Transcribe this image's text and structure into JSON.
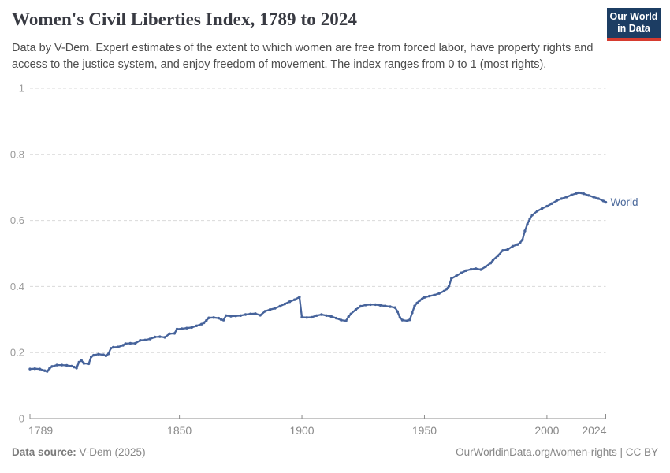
{
  "header": {
    "title": "Women's Civil Liberties Index, 1789 to 2024",
    "subtitle": "Data by V-Dem. Expert estimates of the extent to which women are free from forced labor, have property rights and access to the justice system, and enjoy freedom of movement. The index ranges from 0 to 1 (most rights).",
    "logo": {
      "line1": "Our World",
      "line2": "in Data",
      "bg_color": "#1c3d63",
      "accent_color": "#d63b2f"
    }
  },
  "chart_data": {
    "type": "line",
    "title": "Women's Civil Liberties Index, 1789 to 2024",
    "xlabel": "",
    "ylabel": "",
    "xlim": [
      1789,
      2024
    ],
    "ylim": [
      0,
      1
    ],
    "x_ticks": [
      1789,
      1850,
      1900,
      1950,
      2000,
      2024
    ],
    "y_ticks": [
      0,
      0.2,
      0.4,
      0.6,
      0.8,
      1
    ],
    "y_tick_labels": [
      "0",
      "0.2",
      "0.4",
      "0.6",
      "0.8",
      "1"
    ],
    "grid": "horizontal-dashed",
    "legend_position": "line-end-label",
    "colors": {
      "line": "#46639b",
      "label": "#4c6a9c",
      "grid": "#d9d9d9",
      "axis": "#8c8c8c"
    },
    "series": [
      {
        "name": "World",
        "points": [
          [
            1789,
            0.15
          ],
          [
            1791,
            0.151
          ],
          [
            1793,
            0.15
          ],
          [
            1795,
            0.145
          ],
          [
            1796,
            0.143
          ],
          [
            1797,
            0.152
          ],
          [
            1798,
            0.158
          ],
          [
            1800,
            0.162
          ],
          [
            1802,
            0.162
          ],
          [
            1804,
            0.161
          ],
          [
            1806,
            0.159
          ],
          [
            1807,
            0.156
          ],
          [
            1808,
            0.153
          ],
          [
            1809,
            0.171
          ],
          [
            1810,
            0.176
          ],
          [
            1811,
            0.167
          ],
          [
            1813,
            0.166
          ],
          [
            1814,
            0.187
          ],
          [
            1815,
            0.192
          ],
          [
            1817,
            0.195
          ],
          [
            1819,
            0.193
          ],
          [
            1820,
            0.19
          ],
          [
            1821,
            0.196
          ],
          [
            1822,
            0.213
          ],
          [
            1823,
            0.216
          ],
          [
            1825,
            0.217
          ],
          [
            1827,
            0.222
          ],
          [
            1828,
            0.227
          ],
          [
            1830,
            0.228
          ],
          [
            1832,
            0.228
          ],
          [
            1834,
            0.237
          ],
          [
            1836,
            0.238
          ],
          [
            1838,
            0.241
          ],
          [
            1840,
            0.247
          ],
          [
            1842,
            0.248
          ],
          [
            1844,
            0.246
          ],
          [
            1846,
            0.257
          ],
          [
            1848,
            0.258
          ],
          [
            1849,
            0.271
          ],
          [
            1851,
            0.272
          ],
          [
            1853,
            0.274
          ],
          [
            1855,
            0.276
          ],
          [
            1857,
            0.281
          ],
          [
            1859,
            0.286
          ],
          [
            1860,
            0.29
          ],
          [
            1861,
            0.297
          ],
          [
            1862,
            0.305
          ],
          [
            1864,
            0.306
          ],
          [
            1866,
            0.304
          ],
          [
            1867,
            0.3
          ],
          [
            1868,
            0.298
          ],
          [
            1869,
            0.312
          ],
          [
            1871,
            0.31
          ],
          [
            1873,
            0.311
          ],
          [
            1875,
            0.312
          ],
          [
            1877,
            0.315
          ],
          [
            1879,
            0.317
          ],
          [
            1881,
            0.318
          ],
          [
            1883,
            0.313
          ],
          [
            1885,
            0.325
          ],
          [
            1887,
            0.33
          ],
          [
            1889,
            0.334
          ],
          [
            1891,
            0.34
          ],
          [
            1893,
            0.347
          ],
          [
            1895,
            0.354
          ],
          [
            1897,
            0.36
          ],
          [
            1899,
            0.368
          ],
          [
            1900,
            0.307
          ],
          [
            1902,
            0.306
          ],
          [
            1904,
            0.307
          ],
          [
            1906,
            0.312
          ],
          [
            1908,
            0.315
          ],
          [
            1910,
            0.312
          ],
          [
            1912,
            0.309
          ],
          [
            1914,
            0.304
          ],
          [
            1916,
            0.298
          ],
          [
            1918,
            0.296
          ],
          [
            1919,
            0.308
          ],
          [
            1920,
            0.317
          ],
          [
            1922,
            0.33
          ],
          [
            1924,
            0.34
          ],
          [
            1926,
            0.344
          ],
          [
            1928,
            0.345
          ],
          [
            1930,
            0.345
          ],
          [
            1932,
            0.343
          ],
          [
            1934,
            0.341
          ],
          [
            1936,
            0.339
          ],
          [
            1938,
            0.336
          ],
          [
            1939,
            0.324
          ],
          [
            1940,
            0.306
          ],
          [
            1941,
            0.298
          ],
          [
            1943,
            0.296
          ],
          [
            1944,
            0.299
          ],
          [
            1945,
            0.32
          ],
          [
            1946,
            0.341
          ],
          [
            1947,
            0.35
          ],
          [
            1948,
            0.357
          ],
          [
            1949,
            0.362
          ],
          [
            1950,
            0.367
          ],
          [
            1952,
            0.371
          ],
          [
            1954,
            0.374
          ],
          [
            1956,
            0.379
          ],
          [
            1958,
            0.386
          ],
          [
            1959,
            0.392
          ],
          [
            1960,
            0.401
          ],
          [
            1961,
            0.424
          ],
          [
            1963,
            0.432
          ],
          [
            1965,
            0.441
          ],
          [
            1967,
            0.448
          ],
          [
            1969,
            0.452
          ],
          [
            1971,
            0.454
          ],
          [
            1973,
            0.451
          ],
          [
            1975,
            0.46
          ],
          [
            1977,
            0.471
          ],
          [
            1978,
            0.48
          ],
          [
            1980,
            0.493
          ],
          [
            1982,
            0.509
          ],
          [
            1984,
            0.512
          ],
          [
            1986,
            0.522
          ],
          [
            1988,
            0.527
          ],
          [
            1989,
            0.532
          ],
          [
            1990,
            0.541
          ],
          [
            1991,
            0.568
          ],
          [
            1992,
            0.588
          ],
          [
            1993,
            0.605
          ],
          [
            1994,
            0.616
          ],
          [
            1996,
            0.628
          ],
          [
            1998,
            0.636
          ],
          [
            2000,
            0.643
          ],
          [
            2002,
            0.651
          ],
          [
            2004,
            0.66
          ],
          [
            2006,
            0.666
          ],
          [
            2008,
            0.671
          ],
          [
            2010,
            0.677
          ],
          [
            2012,
            0.682
          ],
          [
            2013,
            0.684
          ],
          [
            2015,
            0.681
          ],
          [
            2017,
            0.676
          ],
          [
            2019,
            0.671
          ],
          [
            2021,
            0.666
          ],
          [
            2023,
            0.659
          ],
          [
            2024,
            0.655
          ]
        ]
      }
    ]
  },
  "footer": {
    "source_label": "Data source:",
    "source_value": " V-Dem (2025)",
    "link": "OurWorldinData.org/women-rights | CC BY"
  }
}
